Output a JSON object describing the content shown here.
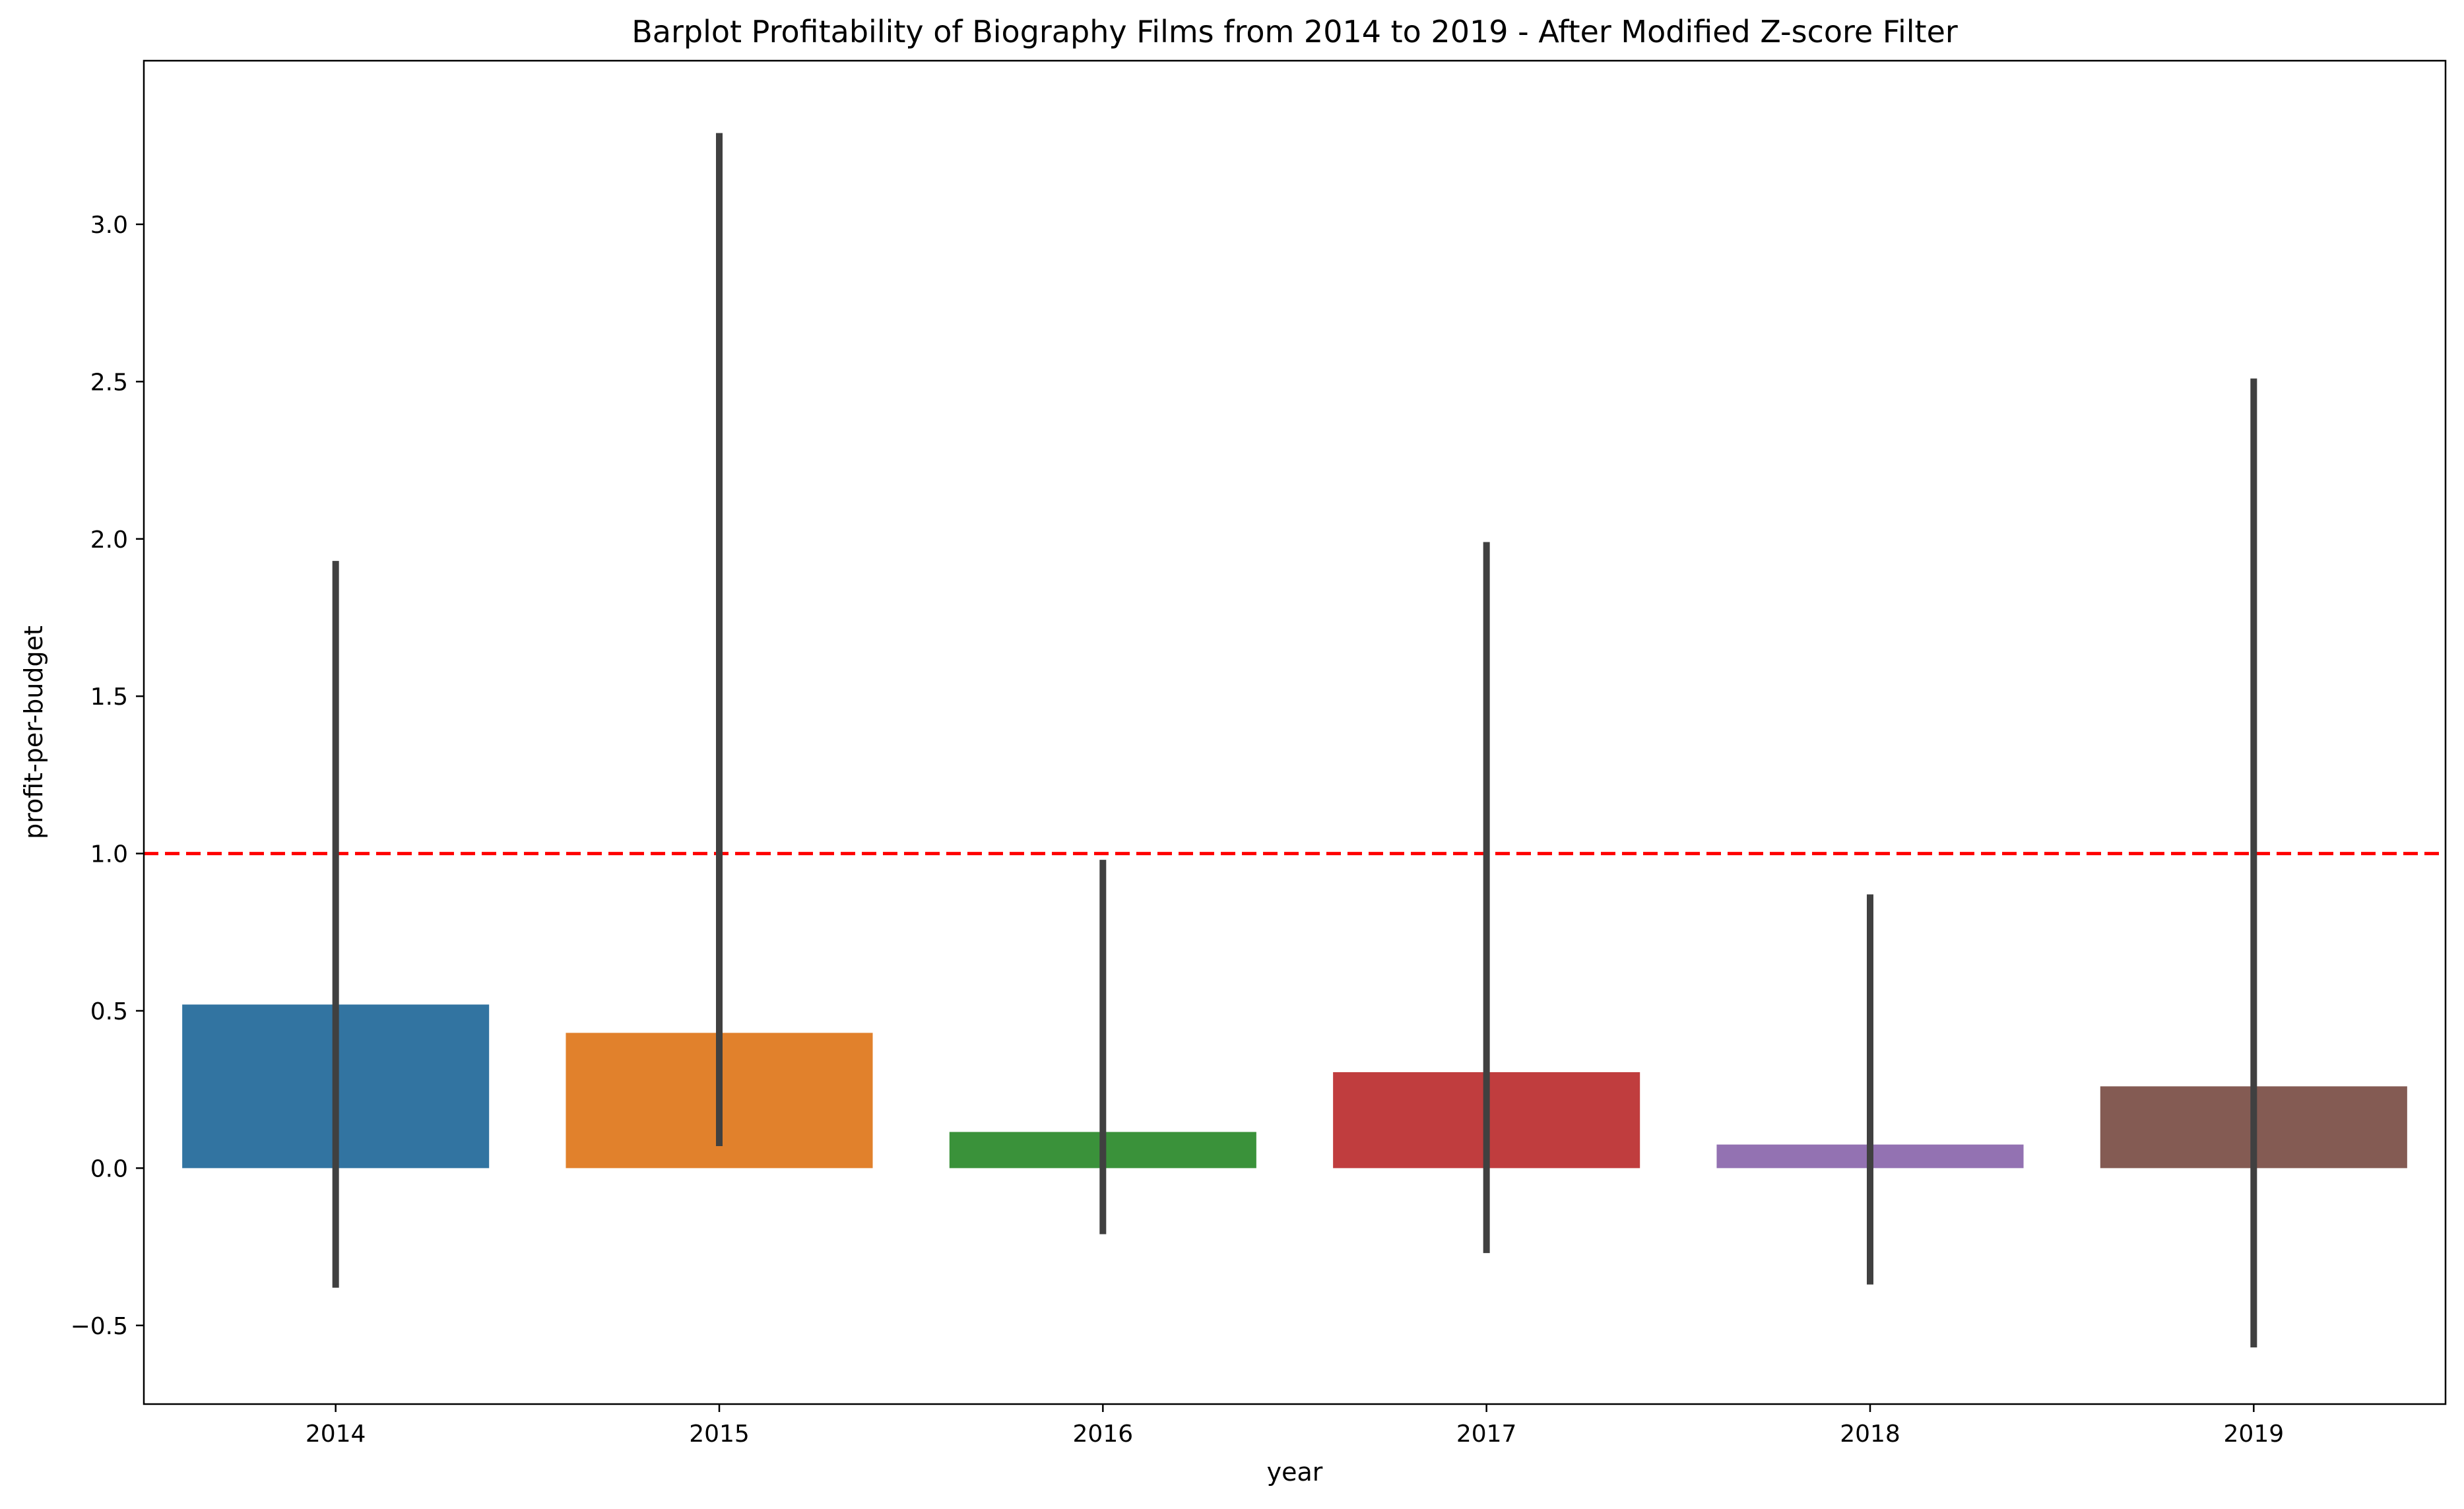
{
  "chart_data": {
    "type": "bar",
    "title": "Barplot Profitability of Biography Films from 2014 to 2019 - After Modified Z-score Filter",
    "xlabel": "year",
    "ylabel": "profit-per-budget",
    "categories": [
      "2014",
      "2015",
      "2016",
      "2017",
      "2018",
      "2019"
    ],
    "values": [
      0.52,
      0.43,
      0.115,
      0.305,
      0.075,
      0.26
    ],
    "error_low": [
      -0.38,
      0.07,
      -0.21,
      -0.27,
      -0.37,
      -0.57
    ],
    "error_high": [
      1.93,
      3.29,
      0.98,
      1.99,
      0.87,
      2.51
    ],
    "colors": [
      "#3274a1",
      "#e1812c",
      "#3a923a",
      "#c03d3e",
      "#9372b2",
      "#845b53"
    ],
    "error_color": "#404040",
    "reference_line": {
      "y": 1.0,
      "color": "#ff0000",
      "style": "dashed"
    },
    "ylim": [
      -0.75,
      3.52
    ],
    "yticks": [
      -0.5,
      0.0,
      0.5,
      1.0,
      1.5,
      2.0,
      2.5,
      3.0
    ],
    "ytick_labels": [
      "−0.5",
      "0.0",
      "0.5",
      "1.0",
      "1.5",
      "2.0",
      "2.5",
      "3.0"
    ],
    "grid": false,
    "legend": "none"
  }
}
